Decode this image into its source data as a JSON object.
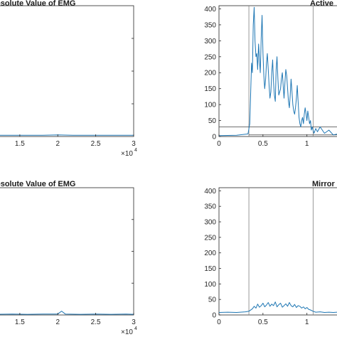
{
  "chart_data": [
    {
      "id": "top-left",
      "type": "line",
      "title": "osolute Value of EMG",
      "x_ticks": [
        "1.5",
        "2",
        "2.5",
        "3"
      ],
      "x_tick_values": [
        1.5,
        2,
        2.5,
        3
      ],
      "x_multiplier": "×10",
      "x_multiplier_exp": "4",
      "xlim": [
        1.22,
        3.0
      ],
      "ylim": [
        0,
        400
      ],
      "series": [
        {
          "values_x": [
            1.22,
            1.5,
            1.8,
            2.0,
            2.2,
            2.5,
            2.8,
            3.0
          ],
          "values_y": [
            4,
            4,
            4,
            5,
            4,
            4,
            4,
            4
          ]
        }
      ],
      "color": "#1f77b4",
      "grid": false
    },
    {
      "id": "top-right",
      "type": "line",
      "title": "Active",
      "y_ticks": [
        "0",
        "50",
        "100",
        "150",
        "200",
        "250",
        "300",
        "350",
        "400"
      ],
      "y_tick_values": [
        0,
        50,
        100,
        150,
        200,
        250,
        300,
        350,
        400
      ],
      "x_ticks": [
        "0",
        "0.5",
        "1"
      ],
      "x_tick_values": [
        0,
        0.5,
        1
      ],
      "xlim": [
        0,
        1.35
      ],
      "ylim": [
        0,
        410
      ],
      "vlines": [
        0.34,
        1.07
      ],
      "hline": 30,
      "hline_low": 5,
      "series": [
        {
          "values_x": [
            0,
            0.2,
            0.33,
            0.35,
            0.37,
            0.38,
            0.39,
            0.4,
            0.41,
            0.42,
            0.43,
            0.44,
            0.45,
            0.46,
            0.47,
            0.48,
            0.49,
            0.5,
            0.51,
            0.52,
            0.53,
            0.54,
            0.55,
            0.56,
            0.57,
            0.58,
            0.59,
            0.6,
            0.61,
            0.62,
            0.63,
            0.64,
            0.65,
            0.66,
            0.67,
            0.68,
            0.69,
            0.7,
            0.71,
            0.72,
            0.73,
            0.74,
            0.75,
            0.76,
            0.77,
            0.78,
            0.79,
            0.8,
            0.81,
            0.82,
            0.83,
            0.84,
            0.85,
            0.86,
            0.87,
            0.88,
            0.89,
            0.9,
            0.91,
            0.92,
            0.93,
            0.94,
            0.95,
            0.96,
            0.97,
            0.98,
            0.99,
            1.0,
            1.01,
            1.02,
            1.03,
            1.04,
            1.05,
            1.06,
            1.08,
            1.1,
            1.12,
            1.15,
            1.2,
            1.25,
            1.3,
            1.35
          ],
          "values_y": [
            3,
            4,
            8,
            40,
            230,
            200,
            350,
            405,
            300,
            250,
            260,
            210,
            290,
            240,
            200,
            310,
            380,
            260,
            190,
            150,
            180,
            230,
            260,
            210,
            160,
            120,
            140,
            200,
            240,
            170,
            130,
            110,
            210,
            250,
            180,
            130,
            140,
            150,
            180,
            200,
            160,
            120,
            170,
            210,
            190,
            150,
            110,
            90,
            130,
            180,
            140,
            100,
            80,
            70,
            90,
            120,
            160,
            110,
            60,
            40,
            30,
            50,
            60,
            40,
            70,
            90,
            70,
            50,
            80,
            60,
            40,
            50,
            20,
            30,
            10,
            25,
            15,
            30,
            10,
            20,
            5,
            8
          ]
        }
      ],
      "color": "#1f77b4",
      "grid": false
    },
    {
      "id": "bottom-left",
      "type": "line",
      "title": "osolute Value of EMG",
      "x_ticks": [
        "1.5",
        "2",
        "2.5",
        "3"
      ],
      "x_tick_values": [
        1.5,
        2,
        2.5,
        3
      ],
      "x_multiplier": "×10",
      "x_multiplier_exp": "4",
      "xlim": [
        1.22,
        3.0
      ],
      "ylim": [
        0,
        400
      ],
      "series": [
        {
          "values_x": [
            1.22,
            1.4,
            1.6,
            1.8,
            2.0,
            2.05,
            2.1,
            2.3,
            2.5,
            2.7,
            2.9,
            3.0
          ],
          "values_y": [
            2,
            3,
            2,
            3,
            3,
            12,
            3,
            2,
            3,
            2,
            3,
            2
          ]
        }
      ],
      "color": "#1f77b4",
      "grid": false
    },
    {
      "id": "bottom-right",
      "type": "line",
      "title": "Mirror",
      "y_ticks": [
        "0",
        "50",
        "100",
        "150",
        "200",
        "250",
        "300",
        "350",
        "400"
      ],
      "y_tick_values": [
        0,
        50,
        100,
        150,
        200,
        250,
        300,
        350,
        400
      ],
      "x_ticks": [
        "0",
        "0.5",
        "1"
      ],
      "x_tick_values": [
        0,
        0.5,
        1
      ],
      "xlim": [
        0,
        1.35
      ],
      "ylim": [
        0,
        410
      ],
      "vlines": [
        0.34,
        1.07
      ],
      "series": [
        {
          "values_x": [
            0,
            0.1,
            0.2,
            0.3,
            0.34,
            0.38,
            0.4,
            0.42,
            0.44,
            0.46,
            0.48,
            0.5,
            0.52,
            0.54,
            0.56,
            0.58,
            0.6,
            0.62,
            0.64,
            0.66,
            0.68,
            0.7,
            0.72,
            0.74,
            0.76,
            0.78,
            0.8,
            0.82,
            0.84,
            0.86,
            0.88,
            0.9,
            0.92,
            0.94,
            0.96,
            0.98,
            1.0,
            1.02,
            1.04,
            1.07,
            1.1,
            1.15,
            1.2,
            1.25,
            1.3,
            1.35
          ],
          "values_y": [
            8,
            9,
            8,
            10,
            12,
            20,
            28,
            22,
            35,
            25,
            30,
            38,
            26,
            32,
            40,
            28,
            35,
            30,
            42,
            26,
            33,
            38,
            25,
            30,
            36,
            28,
            40,
            30,
            26,
            34,
            24,
            30,
            28,
            22,
            26,
            20,
            24,
            18,
            16,
            12,
            9,
            10,
            8,
            9,
            8,
            9
          ]
        }
      ],
      "color": "#1f77b4",
      "grid": false
    }
  ]
}
